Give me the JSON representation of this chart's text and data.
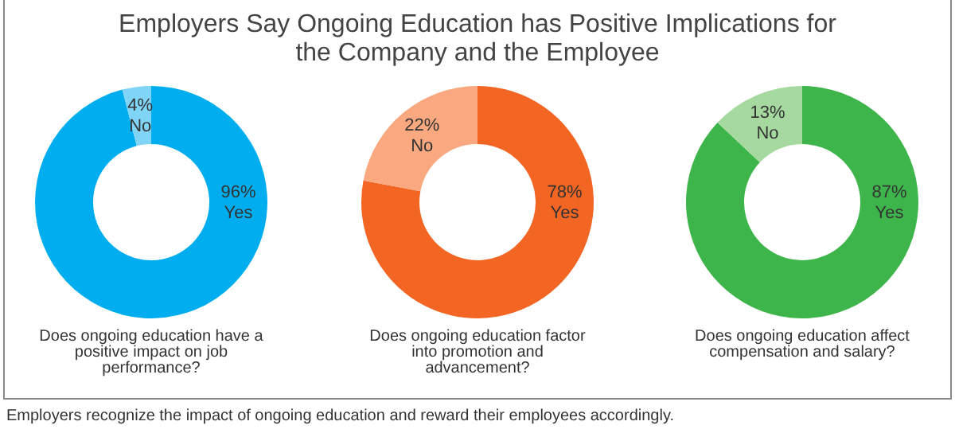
{
  "chart_data": [
    {
      "type": "donut",
      "title": "Employers Say Ongoing Education has Positive Implications for the Company and the Employee",
      "xlabel": "Does ongoing education have a positive impact on job performance?",
      "categories": [
        "Yes",
        "No"
      ],
      "values": [
        96,
        4
      ],
      "colors": [
        "#00aeef",
        "#80d4f6"
      ],
      "value_labels": [
        "96%",
        "4%"
      ]
    },
    {
      "type": "donut",
      "xlabel": "Does ongoing education factor into promotion and advancement?",
      "categories": [
        "Yes",
        "No"
      ],
      "values": [
        78,
        22
      ],
      "colors": [
        "#f26522",
        "#f9a87f"
      ],
      "value_labels": [
        "78%",
        "22%"
      ]
    },
    {
      "type": "donut",
      "xlabel": "Does ongoing education affect compensation and salary?",
      "categories": [
        "Yes",
        "No"
      ],
      "values": [
        87,
        13
      ],
      "colors": [
        "#3db54a",
        "#a6d9a0"
      ],
      "value_labels": [
        "87%",
        "13%"
      ],
      "annotations": [
        "Employers recognize the impact of ongoing education and reward their employees accordingly."
      ]
    }
  ]
}
